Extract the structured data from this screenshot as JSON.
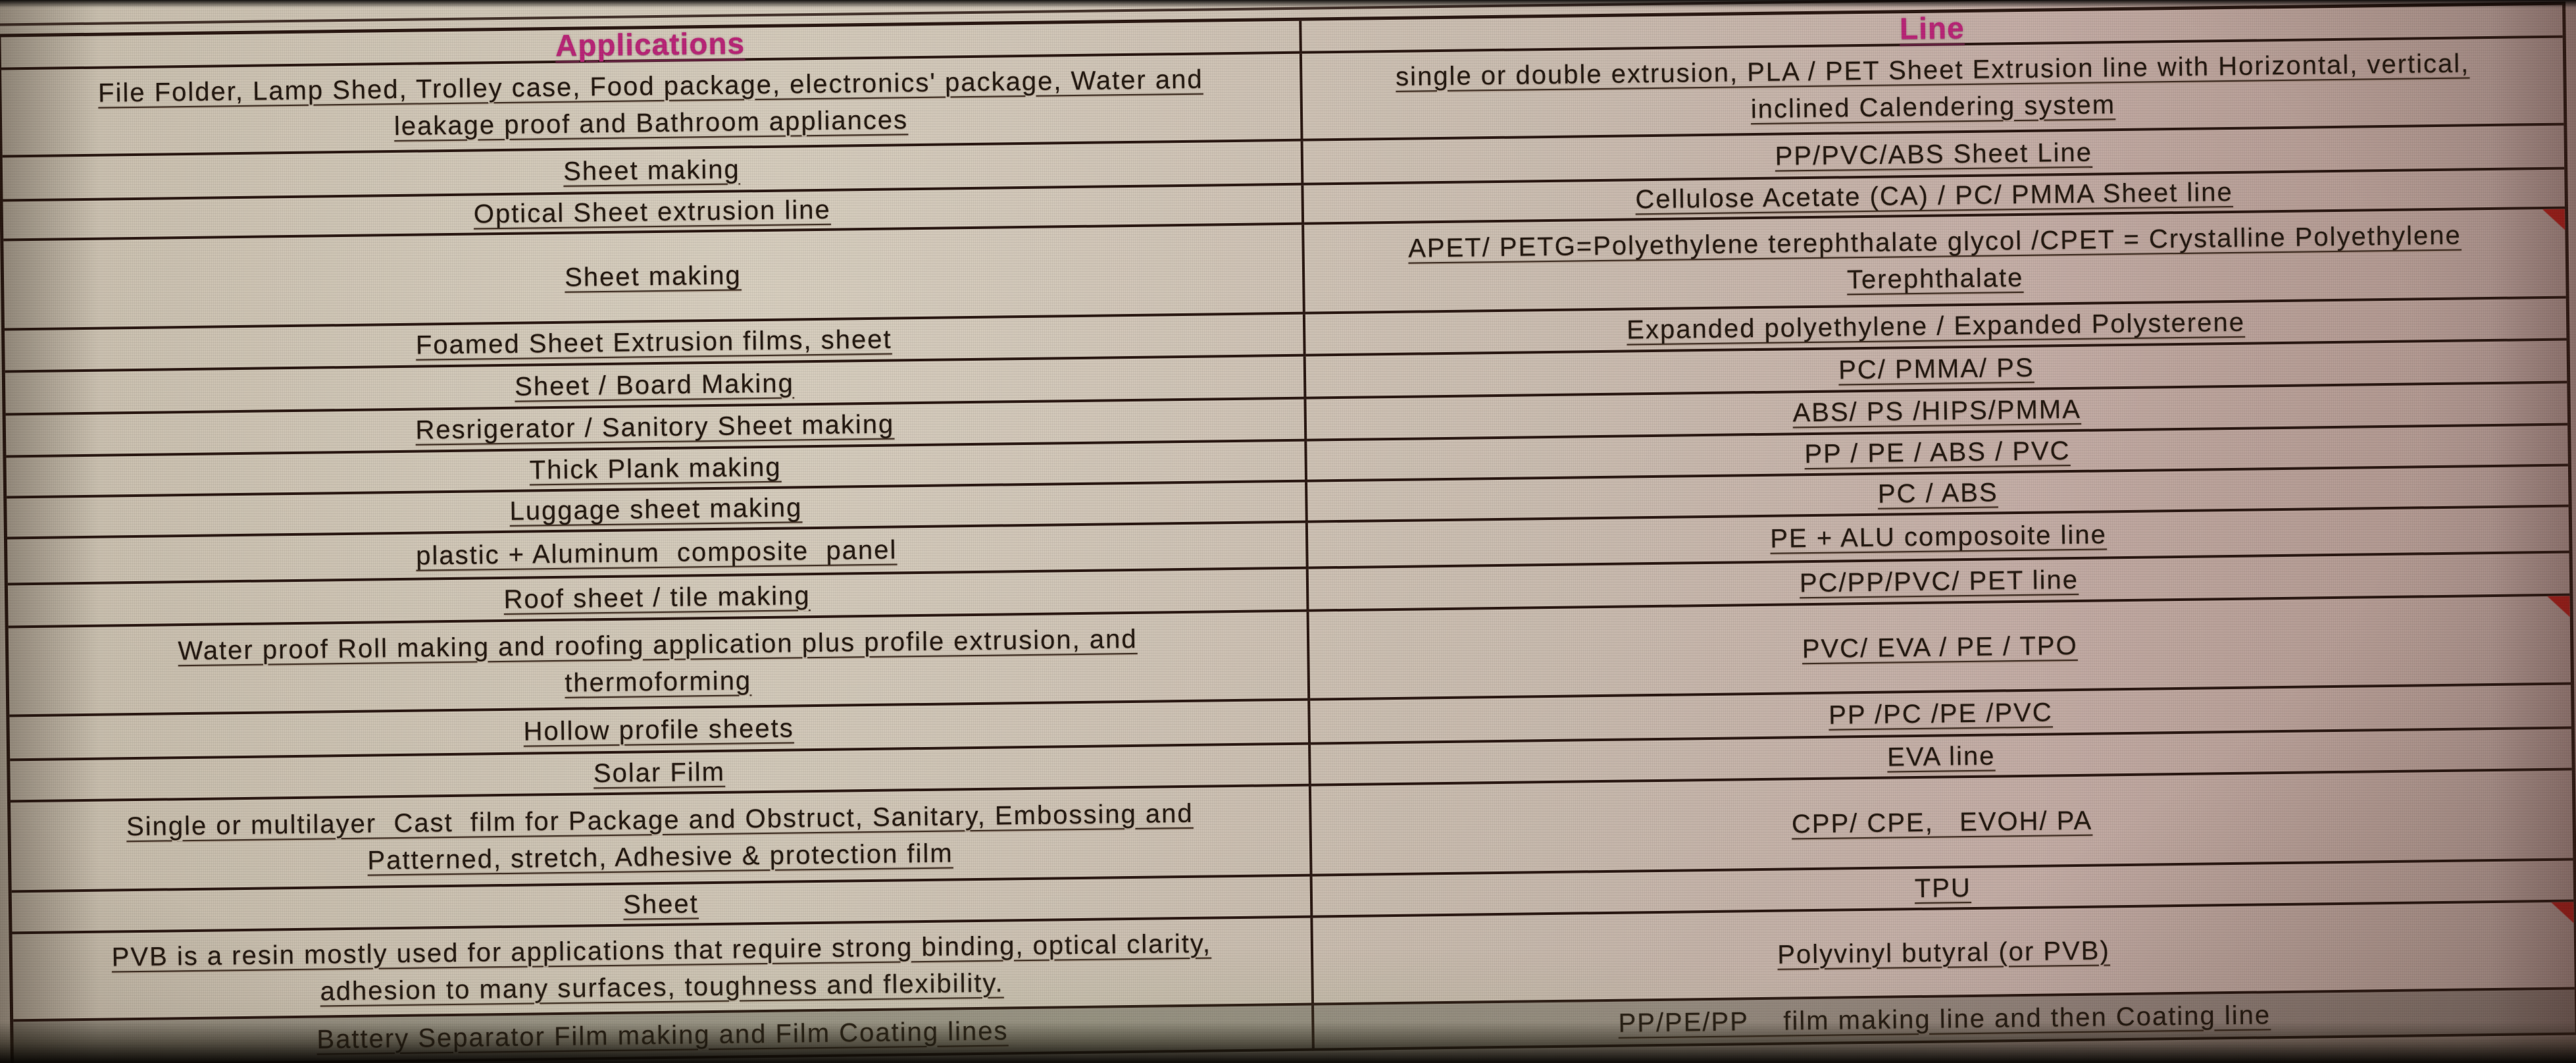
{
  "table": {
    "headers": {
      "applications": "Applications",
      "line": "Line"
    },
    "rows": [
      {
        "application": "File Folder, Lamp Shed, Trolley case, Food package, electronics' package, Water and\nleakage proof and Bathroom appliances",
        "line": "single or double extrusion, PLA / PET Sheet Extrusion line with Horizontal, vertical,\ninclined Calendering system",
        "has_comment_flag": false
      },
      {
        "application": "Sheet making",
        "line": "PP/PVC/ABS Sheet Line",
        "has_comment_flag": false
      },
      {
        "application": "Optical Sheet extrusion line",
        "line": "Cellulose Acetate (CA) / PC/ PMMA Sheet line",
        "has_comment_flag": false
      },
      {
        "application": "Sheet making",
        "line": "APET/ PETG=Polyethylene terephthalate glycol /CPET = Crystalline Polyethylene\nTerephthalate",
        "has_comment_flag": true
      },
      {
        "application": "Foamed Sheet Extrusion films, sheet",
        "line": "Expanded polyethylene  / Expanded Polysterene",
        "has_comment_flag": false
      },
      {
        "application": "Sheet / Board Making",
        "line": "PC/ PMMA/ PS",
        "has_comment_flag": false
      },
      {
        "application": "Resrigerator / Sanitory Sheet making",
        "line": "ABS/ PS /HIPS/PMMA",
        "has_comment_flag": false
      },
      {
        "application": "Thick Plank making",
        "line": "PP / PE / ABS / PVC",
        "has_comment_flag": false
      },
      {
        "application": "Luggage sheet making",
        "line": "PC / ABS",
        "has_comment_flag": false
      },
      {
        "application": "plastic + Aluminum  composite  panel",
        "line": "PE + ALU composoite line",
        "has_comment_flag": false
      },
      {
        "application": "Roof sheet / tile making",
        "line": "PC/PP/PVC/ PET line",
        "has_comment_flag": false
      },
      {
        "application": "Water proof Roll making and roofing application plus profile extrusion, and\nthermoforming",
        "line": "PVC/ EVA / PE / TPO",
        "has_comment_flag": true
      },
      {
        "application": "Hollow profile sheets",
        "line": "PP /PC /PE /PVC",
        "has_comment_flag": false
      },
      {
        "application": "Solar Film",
        "line": "EVA line",
        "has_comment_flag": false
      },
      {
        "application": "Single or multilayer  Cast  film for Package and Obstruct, Sanitary, Embossing and\nPatterned, stretch, Adhesive & protection film",
        "line": "CPP/ CPE,   EVOH/ PA",
        "has_comment_flag": false
      },
      {
        "application": "Sheet",
        "line": "TPU",
        "has_comment_flag": false
      },
      {
        "application": "PVB is a resin mostly used for applications that require strong binding, optical clarity,\nadhesion to many surfaces, toughness and flexibility.",
        "line": "Polyvinyl butyral (or PVB)",
        "has_comment_flag": true
      },
      {
        "application": "Battery Separator Film making and Film Coating lines",
        "line": "PP/PE/PP    film making line and then Coating line",
        "has_comment_flag": false
      }
    ]
  },
  "colors": {
    "header_text": "#b92577",
    "grid_line": "#2a1812",
    "screen_background": "#c6bbaa",
    "comment_flag": "#a81e1a"
  },
  "icons": {
    "comment_flag": "red corner triangle comment indicator"
  }
}
